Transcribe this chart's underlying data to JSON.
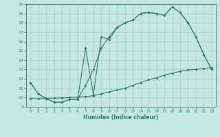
{
  "line1_x": [
    0,
    1,
    2,
    3,
    4,
    5,
    6,
    7,
    8,
    9,
    10,
    11,
    12,
    13,
    14,
    15,
    16,
    17,
    18,
    19,
    20,
    21,
    22,
    23
  ],
  "line1_y": [
    11.6,
    10.4,
    9.9,
    9.5,
    9.5,
    9.8,
    9.8,
    15.3,
    10.3,
    16.5,
    16.2,
    17.5,
    18.0,
    18.3,
    19.0,
    19.1,
    19.0,
    18.8,
    19.7,
    19.1,
    18.0,
    16.5,
    14.6,
    13.0
  ],
  "line2_x": [
    0,
    1,
    2,
    3,
    4,
    5,
    6,
    7,
    8,
    9,
    10,
    11,
    12,
    13,
    14,
    15,
    16,
    17,
    18,
    19,
    20,
    21,
    22,
    23
  ],
  "line2_y": [
    11.6,
    10.4,
    9.9,
    9.5,
    9.5,
    9.8,
    9.8,
    11.3,
    13.0,
    15.3,
    16.5,
    17.5,
    18.0,
    18.3,
    19.0,
    19.1,
    19.0,
    18.8,
    19.7,
    19.1,
    18.0,
    16.5,
    14.6,
    13.0
  ],
  "line3_x": [
    0,
    1,
    2,
    3,
    4,
    5,
    6,
    7,
    8,
    9,
    10,
    11,
    12,
    13,
    14,
    15,
    16,
    17,
    18,
    19,
    20,
    21,
    22,
    23
  ],
  "line3_y": [
    9.9,
    9.9,
    9.9,
    9.95,
    9.95,
    10.0,
    10.05,
    10.1,
    10.2,
    10.4,
    10.6,
    10.8,
    11.0,
    11.3,
    11.6,
    11.9,
    12.1,
    12.4,
    12.6,
    12.8,
    12.95,
    13.0,
    13.1,
    13.2
  ],
  "color": "#2a7a6e",
  "bg_color": "#c5e8e2",
  "grid_color": "#aed0ca",
  "xlabel": "Humidex (Indice chaleur)",
  "ylim": [
    9,
    20
  ],
  "xlim": [
    -0.5,
    23.5
  ],
  "yticks": [
    9,
    10,
    11,
    12,
    13,
    14,
    15,
    16,
    17,
    18,
    19,
    20
  ],
  "xticks": [
    0,
    1,
    2,
    3,
    4,
    5,
    6,
    7,
    8,
    9,
    10,
    11,
    12,
    13,
    14,
    15,
    16,
    17,
    18,
    19,
    20,
    21,
    22,
    23
  ],
  "markersize": 2.0,
  "linewidth": 0.8
}
